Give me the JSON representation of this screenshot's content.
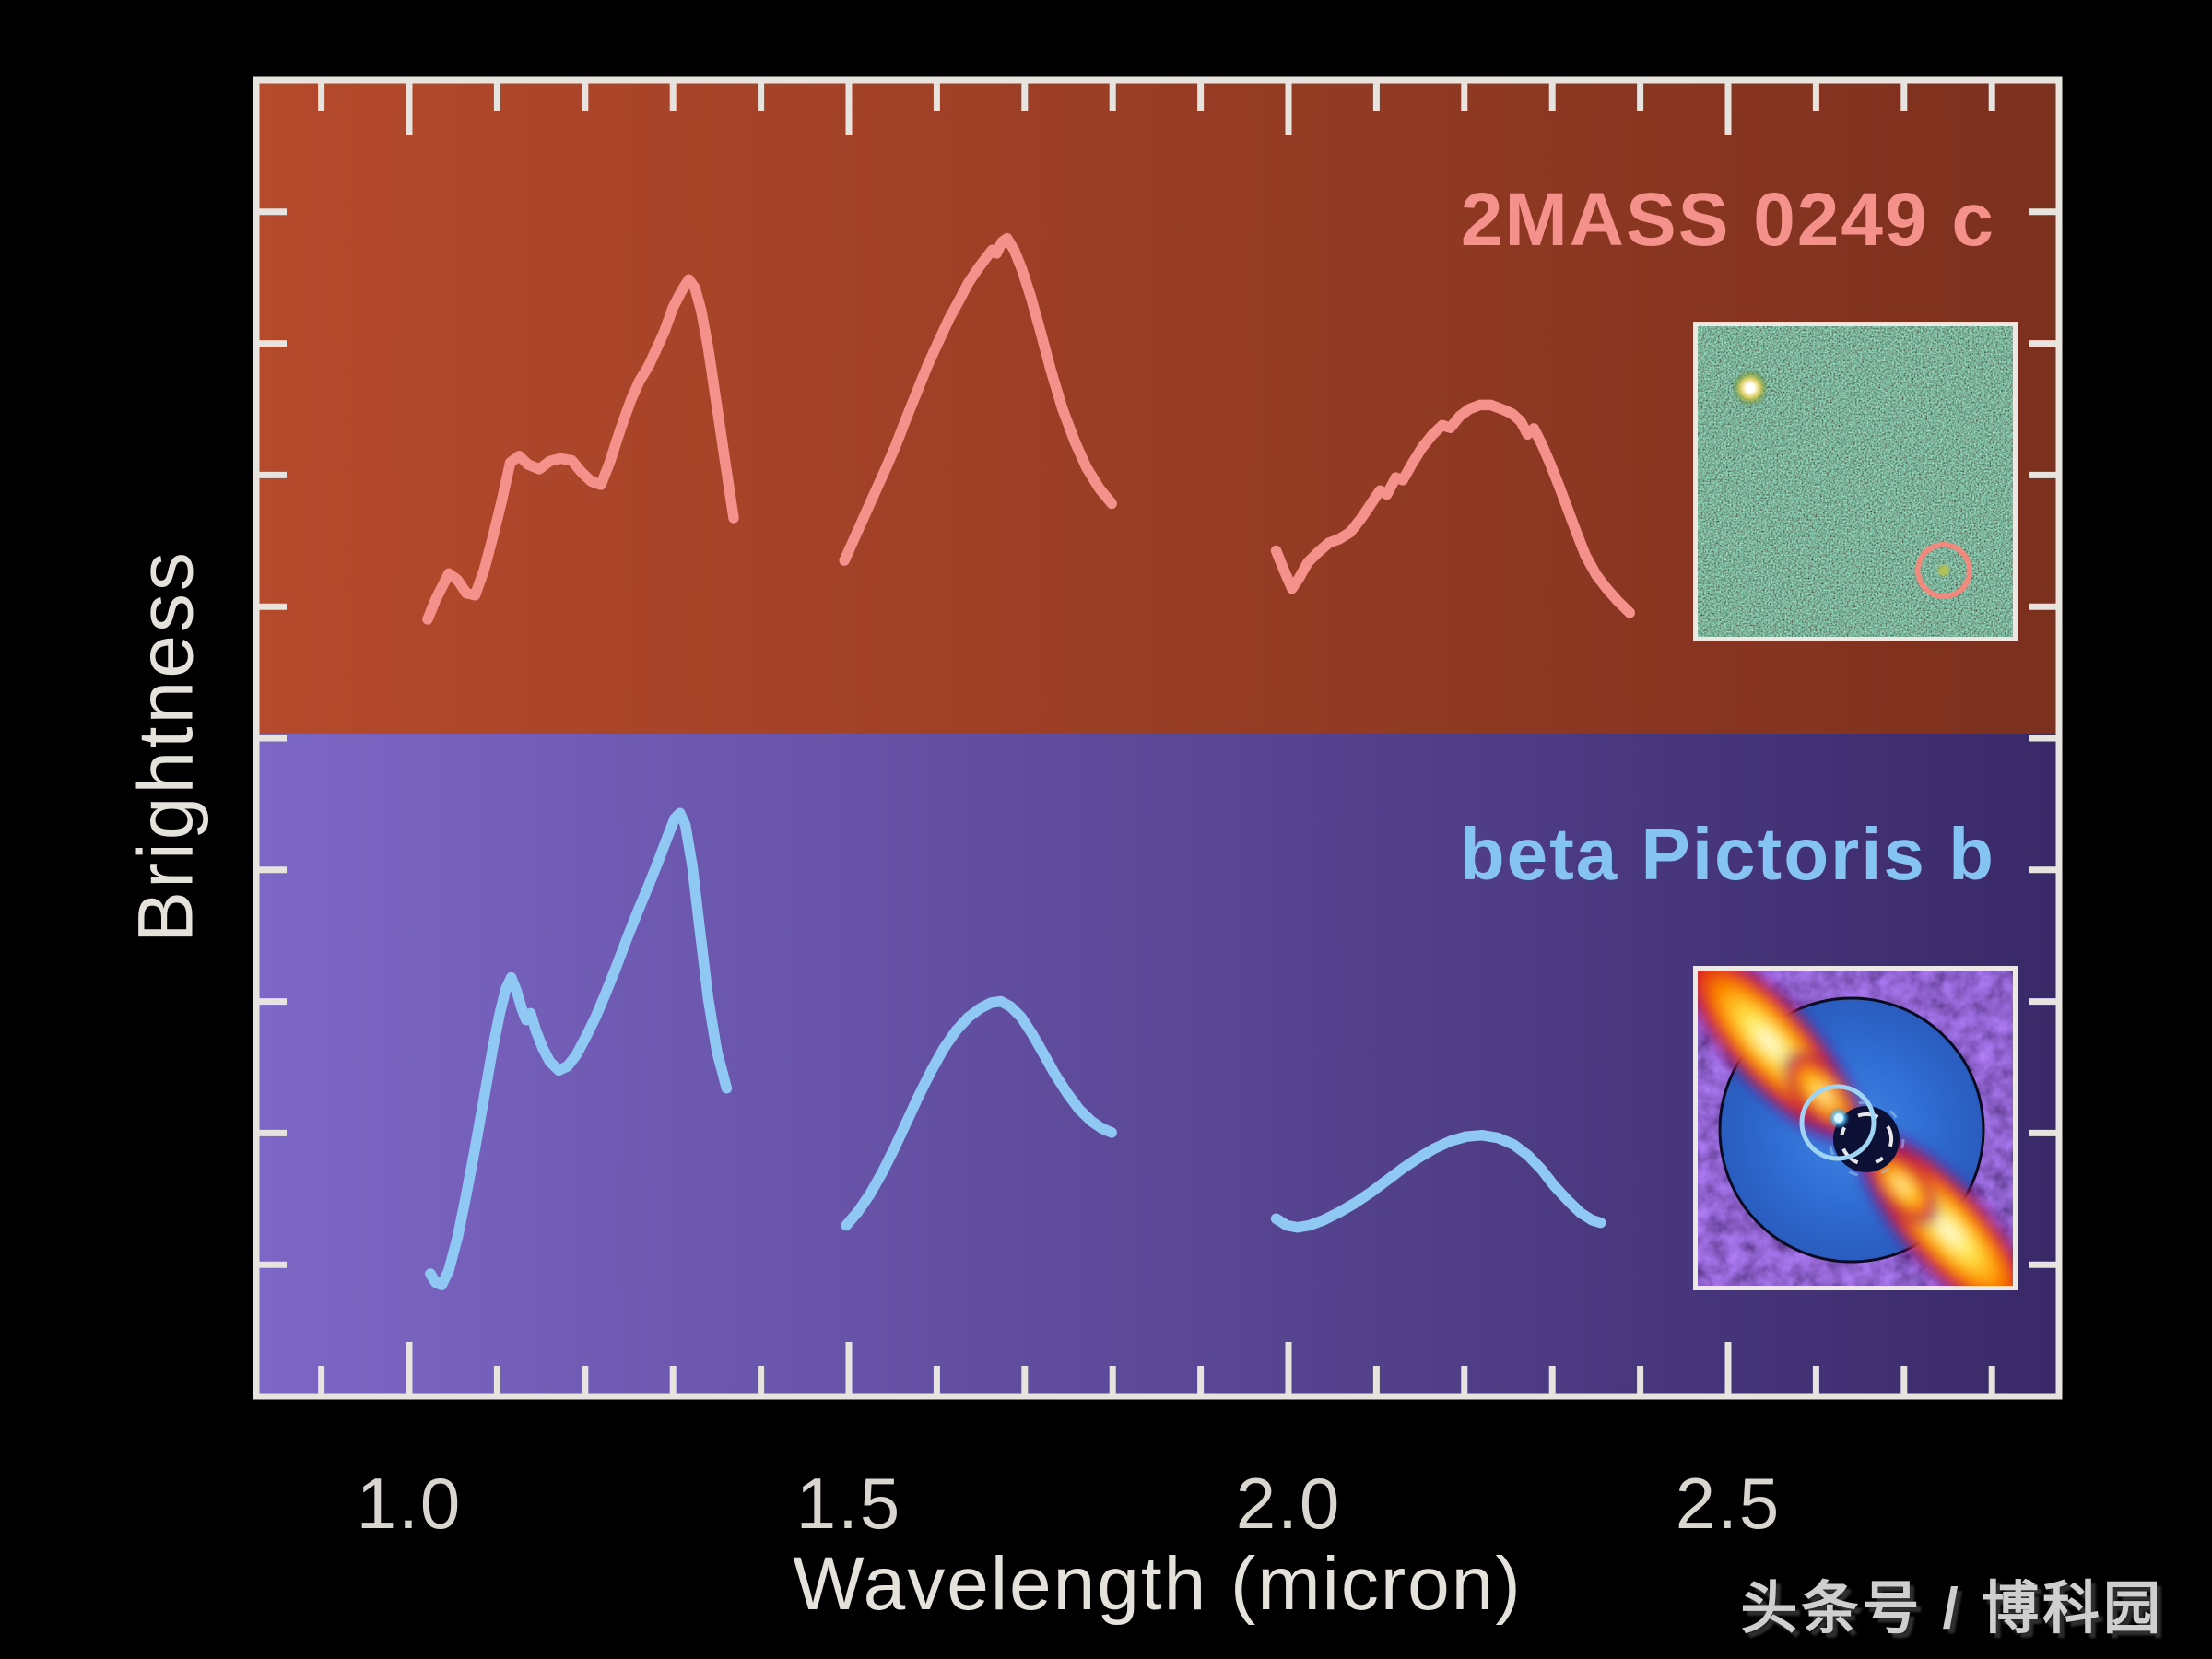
{
  "watermark": "头条号 / 博科园",
  "frame_color": "#e7e4df",
  "tick_label_color": "#d9d5cf",
  "chart_data": {
    "type": "line",
    "title": "",
    "xlabel": "Wavelength (micron)",
    "ylabel": "Brightness",
    "x_ticks": [
      1.0,
      1.5,
      2.0,
      2.5
    ],
    "x_tick_labels": [
      "1.0",
      "1.5",
      "2.0",
      "2.5"
    ],
    "xlim": [
      0.83,
      2.88
    ],
    "x_minor_step": 0.1,
    "grid": false,
    "legend": "none",
    "y_axis": "relative brightness (unlabeled ticks)",
    "panels": [
      {
        "id": "2mass-0249-c",
        "name": "2MASS 0249 c",
        "line_color": "#f5918b",
        "bg_left": "#b54a2c",
        "bg_right": "#7c301e",
        "segments": [
          {
            "band": "J",
            "points": [
              [
                1.021,
                0.175
              ],
              [
                1.03,
                0.205
              ],
              [
                1.045,
                0.245
              ],
              [
                1.055,
                0.235
              ],
              [
                1.065,
                0.215
              ],
              [
                1.075,
                0.212
              ],
              [
                1.085,
                0.25
              ],
              [
                1.095,
                0.3
              ],
              [
                1.105,
                0.355
              ],
              [
                1.115,
                0.415
              ],
              [
                1.125,
                0.425
              ],
              [
                1.135,
                0.412
              ],
              [
                1.148,
                0.405
              ],
              [
                1.16,
                0.417
              ],
              [
                1.172,
                0.421
              ],
              [
                1.185,
                0.418
              ],
              [
                1.196,
                0.4
              ],
              [
                1.207,
                0.386
              ],
              [
                1.218,
                0.381
              ],
              [
                1.228,
                0.415
              ],
              [
                1.24,
                0.465
              ],
              [
                1.252,
                0.51
              ],
              [
                1.262,
                0.54
              ],
              [
                1.272,
                0.562
              ],
              [
                1.28,
                0.585
              ],
              [
                1.29,
                0.615
              ],
              [
                1.3,
                0.652
              ],
              [
                1.31,
                0.678
              ],
              [
                1.318,
                0.695
              ],
              [
                1.325,
                0.682
              ],
              [
                1.332,
                0.648
              ],
              [
                1.34,
                0.59
              ],
              [
                1.35,
                0.5
              ],
              [
                1.36,
                0.41
              ],
              [
                1.369,
                0.33
              ]
            ]
          },
          {
            "band": "H",
            "points": [
              [
                1.495,
                0.265
              ],
              [
                1.51,
                0.31
              ],
              [
                1.525,
                0.355
              ],
              [
                1.54,
                0.4
              ],
              [
                1.553,
                0.44
              ],
              [
                1.566,
                0.485
              ],
              [
                1.578,
                0.525
              ],
              [
                1.59,
                0.565
              ],
              [
                1.602,
                0.6
              ],
              [
                1.614,
                0.635
              ],
              [
                1.625,
                0.662
              ],
              [
                1.636,
                0.69
              ],
              [
                1.647,
                0.712
              ],
              [
                1.656,
                0.728
              ],
              [
                1.663,
                0.74
              ],
              [
                1.668,
                0.735
              ],
              [
                1.674,
                0.752
              ],
              [
                1.68,
                0.758
              ],
              [
                1.688,
                0.74
              ],
              [
                1.697,
                0.71
              ],
              [
                1.707,
                0.668
              ],
              [
                1.718,
                0.615
              ],
              [
                1.73,
                0.555
              ],
              [
                1.743,
                0.497
              ],
              [
                1.757,
                0.447
              ],
              [
                1.77,
                0.408
              ],
              [
                1.785,
                0.375
              ],
              [
                1.799,
                0.352
              ]
            ]
          },
          {
            "band": "K",
            "points": [
              [
                1.986,
                0.28
              ],
              [
                1.995,
                0.25
              ],
              [
                2.004,
                0.222
              ],
              [
                2.012,
                0.238
              ],
              [
                2.022,
                0.262
              ],
              [
                2.034,
                0.278
              ],
              [
                2.046,
                0.292
              ],
              [
                2.058,
                0.298
              ],
              [
                2.07,
                0.308
              ],
              [
                2.082,
                0.328
              ],
              [
                2.094,
                0.352
              ],
              [
                2.104,
                0.372
              ],
              [
                2.112,
                0.366
              ],
              [
                2.122,
                0.392
              ],
              [
                2.13,
                0.388
              ],
              [
                2.14,
                0.412
              ],
              [
                2.152,
                0.438
              ],
              [
                2.164,
                0.458
              ],
              [
                2.175,
                0.472
              ],
              [
                2.184,
                0.468
              ],
              [
                2.195,
                0.486
              ],
              [
                2.206,
                0.497
              ],
              [
                2.218,
                0.503
              ],
              [
                2.23,
                0.503
              ],
              [
                2.242,
                0.497
              ],
              [
                2.254,
                0.49
              ],
              [
                2.264,
                0.478
              ],
              [
                2.272,
                0.458
              ],
              [
                2.279,
                0.467
              ],
              [
                2.288,
                0.443
              ],
              [
                2.298,
                0.412
              ],
              [
                2.308,
                0.378
              ],
              [
                2.318,
                0.342
              ],
              [
                2.328,
                0.306
              ],
              [
                2.338,
                0.272
              ],
              [
                2.35,
                0.243
              ],
              [
                2.362,
                0.222
              ],
              [
                2.375,
                0.202
              ],
              [
                2.388,
                0.185
              ]
            ]
          }
        ]
      },
      {
        "id": "beta-pictoris-b",
        "name": "beta Pictoris b",
        "line_color": "#8fc9f3",
        "bg_left": "#7d67c6",
        "bg_right": "#392968",
        "segments": [
          {
            "band": "J",
            "points": [
              [
                1.024,
                0.185
              ],
              [
                1.03,
                0.172
              ],
              [
                1.037,
                0.168
              ],
              [
                1.045,
                0.19
              ],
              [
                1.055,
                0.24
              ],
              [
                1.065,
                0.305
              ],
              [
                1.075,
                0.375
              ],
              [
                1.085,
                0.45
              ],
              [
                1.095,
                0.525
              ],
              [
                1.103,
                0.578
              ],
              [
                1.11,
                0.615
              ],
              [
                1.116,
                0.632
              ],
              [
                1.122,
                0.612
              ],
              [
                1.128,
                0.585
              ],
              [
                1.133,
                0.568
              ],
              [
                1.138,
                0.578
              ],
              [
                1.144,
                0.552
              ],
              [
                1.152,
                0.525
              ],
              [
                1.16,
                0.505
              ],
              [
                1.17,
                0.492
              ],
              [
                1.18,
                0.498
              ],
              [
                1.19,
                0.515
              ],
              [
                1.2,
                0.54
              ],
              [
                1.212,
                0.572
              ],
              [
                1.224,
                0.61
              ],
              [
                1.236,
                0.65
              ],
              [
                1.248,
                0.692
              ],
              [
                1.26,
                0.732
              ],
              [
                1.272,
                0.77
              ],
              [
                1.284,
                0.81
              ],
              [
                1.294,
                0.845
              ],
              [
                1.302,
                0.872
              ],
              [
                1.308,
                0.88
              ],
              [
                1.314,
                0.862
              ],
              [
                1.322,
                0.8
              ],
              [
                1.33,
                0.71
              ],
              [
                1.34,
                0.6
              ],
              [
                1.35,
                0.52
              ],
              [
                1.361,
                0.465
              ]
            ]
          },
          {
            "band": "H",
            "points": [
              [
                1.497,
                0.258
              ],
              [
                1.51,
                0.278
              ],
              [
                1.524,
                0.305
              ],
              [
                1.538,
                0.338
              ],
              [
                1.552,
                0.375
              ],
              [
                1.566,
                0.415
              ],
              [
                1.58,
                0.455
              ],
              [
                1.594,
                0.492
              ],
              [
                1.608,
                0.525
              ],
              [
                1.622,
                0.552
              ],
              [
                1.636,
                0.572
              ],
              [
                1.65,
                0.586
              ],
              [
                1.662,
                0.594
              ],
              [
                1.673,
                0.596
              ],
              [
                1.684,
                0.588
              ],
              [
                1.696,
                0.572
              ],
              [
                1.708,
                0.548
              ],
              [
                1.721,
                0.518
              ],
              [
                1.734,
                0.487
              ],
              [
                1.748,
                0.458
              ],
              [
                1.762,
                0.433
              ],
              [
                1.776,
                0.415
              ],
              [
                1.788,
                0.404
              ],
              [
                1.799,
                0.398
              ]
            ]
          },
          {
            "band": "K",
            "points": [
              [
                1.986,
                0.268
              ],
              [
                1.998,
                0.258
              ],
              [
                2.01,
                0.255
              ],
              [
                2.024,
                0.258
              ],
              [
                2.04,
                0.266
              ],
              [
                2.058,
                0.278
              ],
              [
                2.076,
                0.292
              ],
              [
                2.094,
                0.308
              ],
              [
                2.112,
                0.326
              ],
              [
                2.13,
                0.344
              ],
              [
                2.148,
                0.36
              ],
              [
                2.166,
                0.374
              ],
              [
                2.184,
                0.385
              ],
              [
                2.202,
                0.392
              ],
              [
                2.22,
                0.394
              ],
              [
                2.238,
                0.39
              ],
              [
                2.256,
                0.38
              ],
              [
                2.272,
                0.364
              ],
              [
                2.288,
                0.342
              ],
              [
                2.302,
                0.318
              ],
              [
                2.318,
                0.295
              ],
              [
                2.332,
                0.277
              ],
              [
                2.345,
                0.266
              ],
              [
                2.355,
                0.262
              ]
            ]
          }
        ]
      }
    ]
  },
  "insets": {
    "top_ring_color": "#f08a7e",
    "bottom_ring_color": "#9fd4f2"
  }
}
